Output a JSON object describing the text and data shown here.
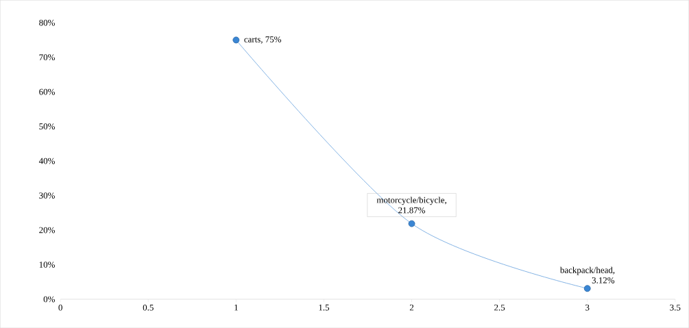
{
  "chart_data": {
    "type": "line",
    "x": [
      1,
      2,
      3
    ],
    "series": [
      {
        "color": "#3a86d4",
        "values": [
          75,
          21.87,
          3.12
        ],
        "value_labels": [
          "carts, 75%",
          "motorcycle/bicycle, 21.87%",
          "backpack/head, 3.12%"
        ]
      }
    ],
    "xlim": [
      0,
      3.5
    ],
    "xticks": [
      0,
      0.5,
      1,
      1.5,
      2,
      2.5,
      3,
      3.5
    ],
    "ylim": [
      0,
      80
    ],
    "yticks": [
      {
        "value": 0,
        "label": "0%"
      },
      {
        "value": 10,
        "label": "10%"
      },
      {
        "value": 20,
        "label": "20%"
      },
      {
        "value": 30,
        "label": "30%"
      },
      {
        "value": 40,
        "label": "40%"
      },
      {
        "value": 50,
        "label": "50%"
      },
      {
        "value": 60,
        "label": "60%"
      },
      {
        "value": 70,
        "label": "70%"
      },
      {
        "value": 80,
        "label": "80%"
      }
    ],
    "marker": "circle",
    "line_style": "solid"
  }
}
